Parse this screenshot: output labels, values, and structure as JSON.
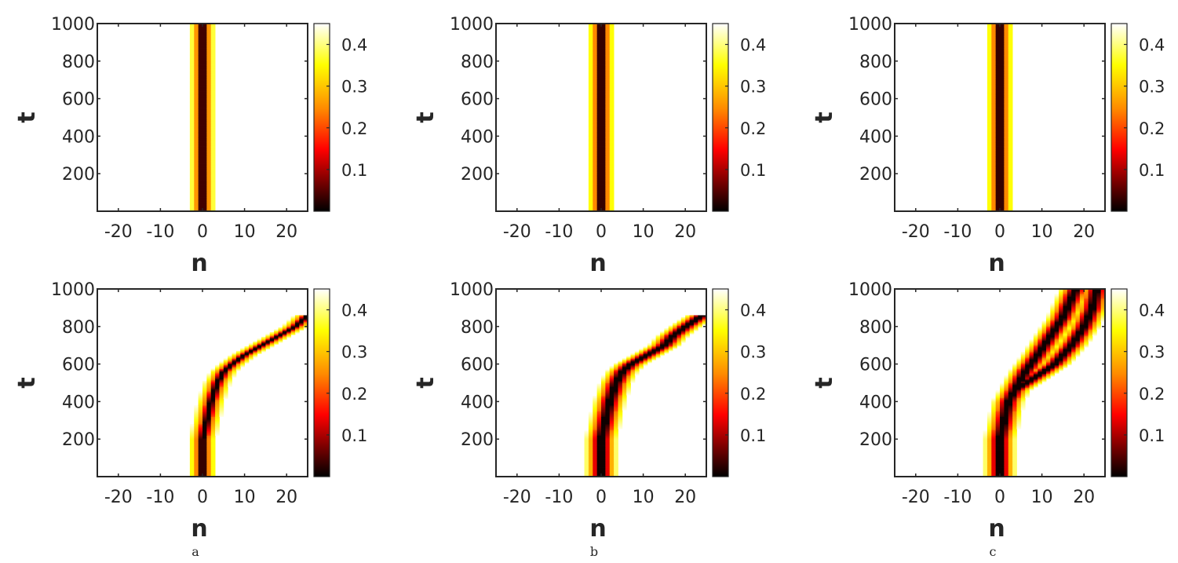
{
  "colors": {
    "cmap": [
      "#000000",
      "#ff0000",
      "#ff8c00",
      "#ffff00",
      "#ffffff"
    ],
    "axis": "#262626"
  },
  "chart_data": [
    {
      "type": "heatmap",
      "panel": "a",
      "row": "top",
      "xlabel": "n",
      "ylabel": "t",
      "xlim": [
        -25,
        25
      ],
      "ylim": [
        0,
        1000
      ],
      "xticks": [
        -20,
        -10,
        0,
        10,
        20
      ],
      "yticks": [
        200,
        400,
        600,
        800,
        1000
      ],
      "colorbar": {
        "range": [
          0,
          0.45
        ],
        "ticks": [
          0.1,
          0.2,
          0.3,
          0.4
        ]
      },
      "track": [
        [
          0,
          0
        ],
        [
          1000,
          0
        ]
      ],
      "width": 1.4,
      "hole": 0.4
    },
    {
      "type": "heatmap",
      "panel": "b",
      "row": "top",
      "xlabel": "n",
      "ylabel": "t",
      "xlim": [
        -25,
        25
      ],
      "ylim": [
        0,
        1000
      ],
      "xticks": [
        -20,
        -10,
        0,
        10,
        20
      ],
      "yticks": [
        200,
        400,
        600,
        800,
        1000
      ],
      "colorbar": {
        "range": [
          0,
          0.45
        ],
        "ticks": [
          0.1,
          0.2,
          0.3,
          0.4
        ]
      },
      "track": [
        [
          0,
          0
        ],
        [
          1000,
          0
        ]
      ],
      "width": 1.5,
      "hole": 0.4
    },
    {
      "type": "heatmap",
      "panel": "c",
      "row": "top",
      "xlabel": "n",
      "ylabel": "t",
      "xlim": [
        -25,
        25
      ],
      "ylim": [
        0,
        1000
      ],
      "xticks": [
        -20,
        -10,
        0,
        10,
        20
      ],
      "yticks": [
        200,
        400,
        600,
        800,
        1000
      ],
      "colorbar": {
        "range": [
          0,
          0.45
        ],
        "ticks": [
          0.1,
          0.2,
          0.3,
          0.4
        ]
      },
      "track": [
        [
          0,
          0
        ],
        [
          1000,
          0
        ]
      ],
      "width": 1.5,
      "hole": 0.4
    },
    {
      "type": "heatmap",
      "panel": "a",
      "row": "bottom",
      "xlabel": "n",
      "ylabel": "t",
      "xlim": [
        -25,
        25
      ],
      "ylim": [
        0,
        1000
      ],
      "xticks": [
        -20,
        -10,
        0,
        10,
        20
      ],
      "yticks": [
        200,
        400,
        600,
        800,
        1000
      ],
      "colorbar": {
        "range": [
          0,
          0.45
        ],
        "ticks": [
          0.1,
          0.2,
          0.3,
          0.4
        ]
      },
      "track": [
        [
          0,
          0
        ],
        [
          200,
          0
        ],
        [
          300,
          1
        ],
        [
          400,
          2
        ],
        [
          500,
          3.5
        ],
        [
          560,
          5
        ],
        [
          600,
          7
        ],
        [
          650,
          10
        ],
        [
          700,
          14
        ],
        [
          750,
          18
        ],
        [
          800,
          22
        ],
        [
          860,
          25
        ]
      ],
      "width": 1.5,
      "hole": 0.4,
      "tmax": 880
    },
    {
      "type": "heatmap",
      "panel": "b",
      "row": "bottom",
      "xlabel": "n",
      "ylabel": "t",
      "xlim": [
        -25,
        25
      ],
      "ylim": [
        0,
        1000
      ],
      "xticks": [
        -20,
        -10,
        0,
        10,
        20
      ],
      "yticks": [
        200,
        400,
        600,
        800,
        1000
      ],
      "colorbar": {
        "range": [
          0,
          0.45
        ],
        "ticks": [
          0.1,
          0.2,
          0.3,
          0.4
        ]
      },
      "track": [
        [
          0,
          0
        ],
        [
          200,
          0
        ],
        [
          300,
          1
        ],
        [
          400,
          2
        ],
        [
          500,
          3.5
        ],
        [
          560,
          5
        ],
        [
          600,
          7
        ],
        [
          650,
          11
        ],
        [
          700,
          15
        ],
        [
          750,
          17
        ],
        [
          800,
          20
        ],
        [
          860,
          24
        ]
      ],
      "width": 1.8,
      "hole": 0.5,
      "tmax": 870
    },
    {
      "type": "heatmap",
      "panel": "c",
      "row": "bottom",
      "xlabel": "n",
      "ylabel": "t",
      "xlim": [
        -25,
        25
      ],
      "ylim": [
        0,
        1000
      ],
      "xticks": [
        -20,
        -10,
        0,
        10,
        20
      ],
      "yticks": [
        200,
        400,
        600,
        800,
        1000
      ],
      "colorbar": {
        "range": [
          0,
          0.45
        ],
        "ticks": [
          0.1,
          0.2,
          0.3,
          0.4
        ]
      },
      "track": [
        [
          0,
          0
        ],
        [
          200,
          0
        ],
        [
          300,
          1
        ],
        [
          400,
          2
        ],
        [
          460,
          3.5
        ]
      ],
      "branches": [
        [
          [
            460,
            3.5
          ],
          [
            560,
            6
          ],
          [
            650,
            9
          ],
          [
            750,
            12
          ],
          [
            850,
            15
          ],
          [
            950,
            17
          ],
          [
            1000,
            18
          ]
        ],
        [
          [
            460,
            3.5
          ],
          [
            540,
            9
          ],
          [
            600,
            13
          ],
          [
            700,
            17
          ],
          [
            800,
            20
          ],
          [
            900,
            22
          ],
          [
            1000,
            23
          ]
        ]
      ],
      "width": 1.8,
      "hole": 0.5
    }
  ],
  "panel_labels": [
    "a",
    "b",
    "c"
  ]
}
